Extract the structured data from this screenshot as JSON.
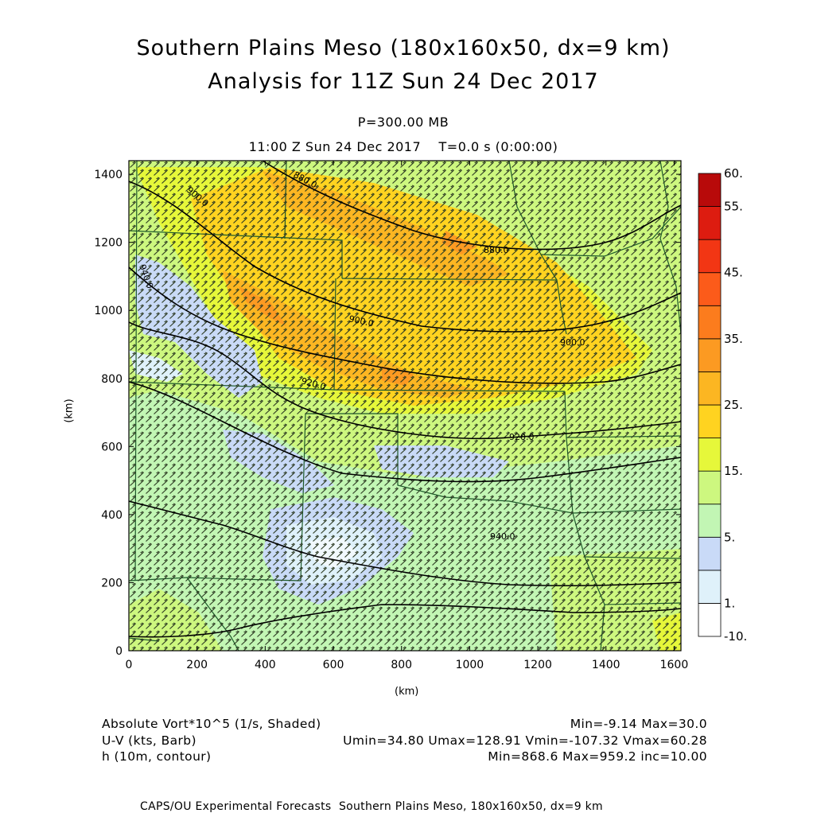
{
  "header": {
    "title_line1": "Southern Plains Meso (180x160x50, dx=9 km)",
    "title_line2": "Analysis for 11Z Sun 24 Dec 2017",
    "level": "P=300.00 MB",
    "time": "11:00 Z Sun 24 Dec 2017    T=0.0 s (0:00:00)"
  },
  "axes": {
    "x_unit": "(km)",
    "y_unit": "(km)",
    "x_ticks": [
      "0",
      "200",
      "400",
      "600",
      "800",
      "1000",
      "1200",
      "1400",
      "1600"
    ],
    "y_ticks": [
      "0",
      "200",
      "400",
      "600",
      "800",
      "1000",
      "1200",
      "1400"
    ],
    "x_range": [
      0,
      1620
    ],
    "y_range": [
      0,
      1440
    ]
  },
  "colorbar": {
    "labels": [
      "60.",
      "55.",
      "45.",
      "35.",
      "25.",
      "15.",
      "5.",
      "1.",
      "-10."
    ],
    "colors": [
      "#ffffff",
      "#dff1fa",
      "#c9daf7",
      "#c2f6b4",
      "#cdf77f",
      "#e6f73a",
      "#ffd320",
      "#fcb622",
      "#fc9a22",
      "#fc7c1d",
      "#fc5b1a",
      "#f23614",
      "#dd1c10",
      "#b80a0a"
    ]
  },
  "contours": {
    "labels": [
      "880.0",
      "900.0",
      "880.0",
      "900.0",
      "900.0",
      "920.0",
      "920.0",
      "940.0",
      "940.0"
    ]
  },
  "legend": {
    "var1_name": "Absolute Vort*10^5 (1/s, Shaded)",
    "var1_stats": "Min=-9.14 Max=30.0",
    "var2_name": "U-V (kts, Barb)",
    "var2_stats": "Umin=34.80 Umax=128.91 Vmin=-107.32 Vmax=60.28",
    "var3_name": "h (10m, contour)",
    "var3_stats": "Min=868.6 Max=959.2 inc=10.00"
  },
  "footer": "CAPS/OU Experimental Forecasts  Southern Plains Meso, 180x160x50, dx=9 km"
}
